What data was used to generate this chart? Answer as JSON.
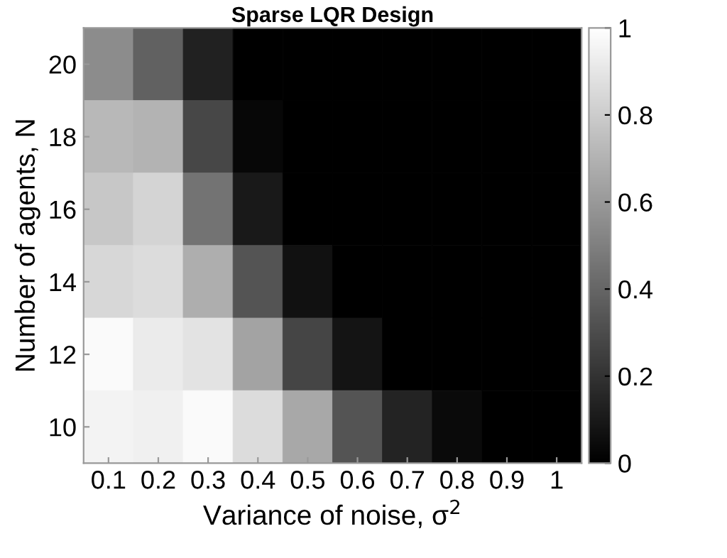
{
  "chart_data": {
    "type": "heatmap",
    "title": "Sparse LQR Design",
    "xlabel": "Variance of noise, σ$^{2}$",
    "ylabel": "Number of agents, N",
    "categories": [
      "0.1",
      "0.2",
      "0.3",
      "0.4",
      "0.5",
      "0.6",
      "0.7",
      "0.8",
      "0.9",
      "1"
    ],
    "y_categories": [
      "20",
      "18",
      "16",
      "14",
      "12",
      "10"
    ],
    "cells": [
      [
        0.55,
        0.38,
        0.13,
        0,
        0,
        0,
        0,
        0,
        0,
        0
      ],
      [
        0.72,
        0.7,
        0.28,
        0.03,
        0,
        0,
        0,
        0,
        0,
        0
      ],
      [
        0.78,
        0.83,
        0.45,
        0.1,
        0,
        0,
        0,
        0,
        0,
        0
      ],
      [
        0.84,
        0.86,
        0.68,
        0.33,
        0.07,
        0,
        0,
        0,
        0,
        0
      ],
      [
        0.98,
        0.92,
        0.89,
        0.64,
        0.27,
        0.08,
        0,
        0,
        0,
        0
      ],
      [
        0.95,
        0.94,
        0.98,
        0.86,
        0.66,
        0.33,
        0.14,
        0.04,
        0,
        0
      ]
    ],
    "clim": [
      0,
      1
    ],
    "cticks": [
      0,
      0.2,
      0.4,
      0.6,
      0.8,
      1
    ],
    "grid": false
  }
}
